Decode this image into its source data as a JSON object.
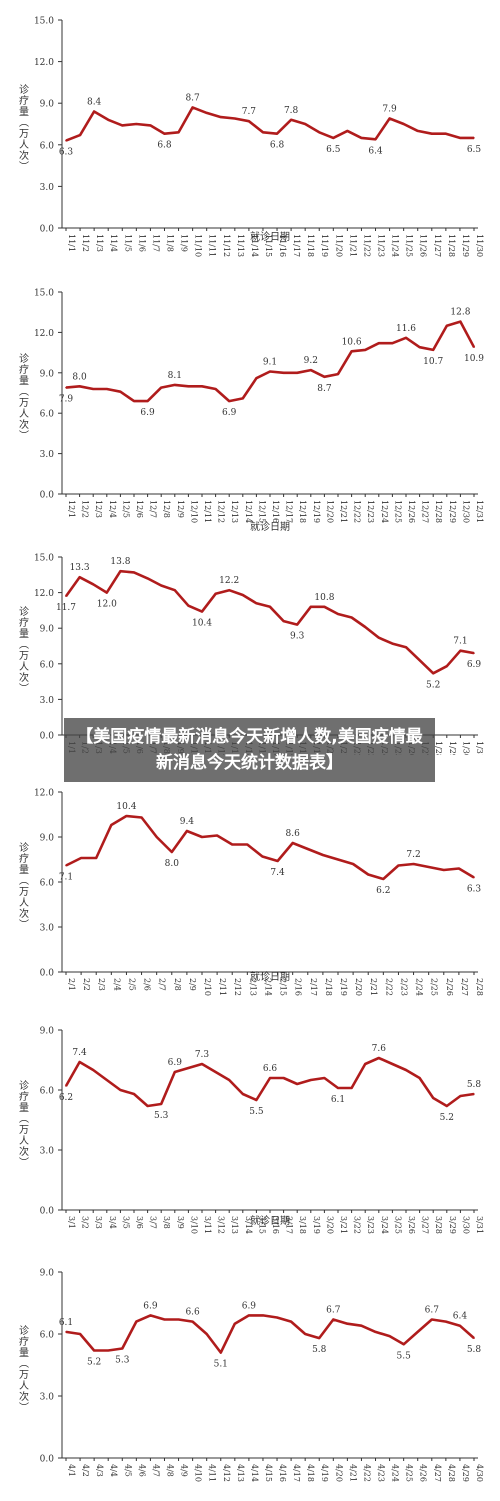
{
  "overlay_title": "【美国疫情最新消息今天新增人数,美国疫情最新消息今天统计数据表】",
  "colors": {
    "line": "#b01c1c",
    "axis": "#333333",
    "text": "#333333",
    "overlay_bg": "#464646"
  },
  "chart_data": [
    {
      "type": "line",
      "xlabel": "就诊日期",
      "ylabel": "诊疗量（万人次）",
      "ylim": [
        0,
        15
      ],
      "yticks": [
        "0.0",
        "3.0",
        "6.0",
        "9.0",
        "12.0",
        "15.0"
      ],
      "categories": [
        "11/1",
        "11/2",
        "11/3",
        "11/4",
        "11/5",
        "11/6",
        "11/7",
        "11/8",
        "11/9",
        "11/10",
        "11/11",
        "11/12",
        "11/13",
        "11/14",
        "11/15",
        "11/16",
        "11/17",
        "11/18",
        "11/19",
        "11/20",
        "11/21",
        "11/22",
        "11/23",
        "11/24",
        "11/25",
        "11/26",
        "11/27",
        "11/28",
        "11/29",
        "11/30"
      ],
      "values": [
        6.3,
        6.7,
        8.4,
        7.8,
        7.4,
        7.5,
        7.4,
        6.8,
        6.9,
        8.7,
        8.3,
        8.0,
        7.9,
        7.7,
        6.9,
        6.8,
        7.8,
        7.5,
        6.9,
        6.5,
        7.0,
        6.5,
        6.4,
        7.9,
        7.5,
        7.0,
        6.8,
        6.8,
        6.5,
        6.5
      ],
      "labels": [
        {
          "i": 0,
          "t": "6.3",
          "pos": "below"
        },
        {
          "i": 2,
          "t": "8.4",
          "pos": "above"
        },
        {
          "i": 7,
          "t": "6.8",
          "pos": "below"
        },
        {
          "i": 9,
          "t": "8.7",
          "pos": "above"
        },
        {
          "i": 13,
          "t": "7.7",
          "pos": "above"
        },
        {
          "i": 15,
          "t": "6.8",
          "pos": "below"
        },
        {
          "i": 16,
          "t": "7.8",
          "pos": "above"
        },
        {
          "i": 19,
          "t": "6.5",
          "pos": "below"
        },
        {
          "i": 22,
          "t": "6.4",
          "pos": "below"
        },
        {
          "i": 23,
          "t": "7.9",
          "pos": "above"
        },
        {
          "i": 29,
          "t": "6.5",
          "pos": "below"
        }
      ]
    },
    {
      "type": "line",
      "xlabel": "就诊日期",
      "ylabel": "诊疗量（万人次）",
      "ylim": [
        0,
        15
      ],
      "yticks": [
        "0.0",
        "3.0",
        "6.0",
        "9.0",
        "12.0",
        "15.0"
      ],
      "categories": [
        "12/1",
        "12/2",
        "12/3",
        "12/4",
        "12/5",
        "12/6",
        "12/7",
        "12/8",
        "12/9",
        "12/10",
        "12/11",
        "12/12",
        "12/13",
        "12/14",
        "12/15",
        "12/16",
        "12/17",
        "12/18",
        "12/19",
        "12/20",
        "12/21",
        "12/22",
        "12/23",
        "12/24",
        "12/25",
        "12/26",
        "12/27",
        "12/28",
        "12/29",
        "12/30",
        "12/31"
      ],
      "values": [
        7.9,
        8.0,
        7.8,
        7.8,
        7.6,
        6.9,
        6.9,
        7.9,
        8.1,
        8.0,
        8.0,
        7.8,
        6.9,
        7.1,
        8.6,
        9.1,
        9.0,
        9.0,
        9.2,
        8.7,
        8.9,
        10.6,
        10.7,
        11.2,
        11.2,
        11.6,
        10.9,
        10.7,
        12.5,
        12.8,
        10.9
      ],
      "labels": [
        {
          "i": 0,
          "t": "7.9",
          "pos": "below"
        },
        {
          "i": 1,
          "t": "8.0",
          "pos": "above"
        },
        {
          "i": 6,
          "t": "6.9",
          "pos": "below"
        },
        {
          "i": 8,
          "t": "8.1",
          "pos": "above"
        },
        {
          "i": 12,
          "t": "6.9",
          "pos": "below"
        },
        {
          "i": 15,
          "t": "9.1",
          "pos": "above"
        },
        {
          "i": 18,
          "t": "9.2",
          "pos": "above"
        },
        {
          "i": 19,
          "t": "8.7",
          "pos": "below"
        },
        {
          "i": 21,
          "t": "10.6",
          "pos": "above"
        },
        {
          "i": 25,
          "t": "11.6",
          "pos": "above"
        },
        {
          "i": 27,
          "t": "10.7",
          "pos": "below"
        },
        {
          "i": 29,
          "t": "12.8",
          "pos": "above"
        },
        {
          "i": 30,
          "t": "10.9",
          "pos": "below"
        }
      ]
    },
    {
      "type": "line",
      "xlabel": "",
      "ylabel": "诊疗量（万人次）",
      "ylim": [
        0,
        15
      ],
      "yticks": [
        "0.0",
        "3.0",
        "6.0",
        "9.0",
        "12.0",
        "15.0"
      ],
      "categories": [
        "1/1",
        "1/2",
        "1/3",
        "1/4",
        "1/5",
        "1/6",
        "1/7",
        "1/8",
        "1/9",
        "1/10",
        "1/11",
        "1/12",
        "1/13",
        "1/14",
        "1/15",
        "1/16",
        "1/17",
        "1/18",
        "1/19",
        "1/20",
        "1/21",
        "1/22",
        "1/23",
        "1/24",
        "1/25",
        "1/26",
        "1/27",
        "1/28",
        "1/29",
        "1/30",
        "1/31"
      ],
      "values": [
        11.7,
        13.3,
        12.7,
        12.0,
        13.8,
        13.7,
        13.2,
        12.6,
        12.2,
        10.9,
        10.4,
        11.9,
        12.2,
        11.8,
        11.1,
        10.8,
        9.6,
        9.3,
        10.8,
        10.8,
        10.2,
        9.9,
        9.1,
        8.2,
        7.7,
        7.4,
        6.3,
        5.2,
        5.8,
        7.1,
        6.9
      ],
      "labels": [
        {
          "i": 0,
          "t": "11.7",
          "pos": "below"
        },
        {
          "i": 1,
          "t": "13.3",
          "pos": "above"
        },
        {
          "i": 3,
          "t": "12.0",
          "pos": "below"
        },
        {
          "i": 4,
          "t": "13.8",
          "pos": "above"
        },
        {
          "i": 10,
          "t": "10.4",
          "pos": "below"
        },
        {
          "i": 12,
          "t": "12.2",
          "pos": "above"
        },
        {
          "i": 17,
          "t": "9.3",
          "pos": "below"
        },
        {
          "i": 19,
          "t": "10.8",
          "pos": "above"
        },
        {
          "i": 27,
          "t": "5.2",
          "pos": "below"
        },
        {
          "i": 29,
          "t": "7.1",
          "pos": "above"
        },
        {
          "i": 30,
          "t": "6.9",
          "pos": "below"
        }
      ]
    },
    {
      "type": "line",
      "xlabel": "就诊日期",
      "ylabel": "诊疗量（万人次）",
      "ylim": [
        0,
        12
      ],
      "yticks": [
        "0.0",
        "3.0",
        "6.0",
        "9.0",
        "12.0"
      ],
      "categories": [
        "2/1",
        "2/2",
        "2/3",
        "2/4",
        "2/5",
        "2/6",
        "2/7",
        "2/8",
        "2/9",
        "2/10",
        "2/11",
        "2/12",
        "2/13",
        "2/14",
        "2/15",
        "2/16",
        "2/17",
        "2/18",
        "2/19",
        "2/20",
        "2/21",
        "2/22",
        "2/23",
        "2/24",
        "2/25",
        "2/26",
        "2/27",
        "2/28"
      ],
      "values": [
        7.1,
        7.6,
        7.6,
        9.8,
        10.4,
        10.3,
        9.0,
        8.0,
        9.4,
        9.0,
        9.1,
        8.5,
        8.5,
        7.7,
        7.4,
        8.6,
        8.2,
        7.8,
        7.5,
        7.2,
        6.5,
        6.2,
        7.1,
        7.2,
        7.0,
        6.8,
        6.9,
        6.3
      ],
      "labels": [
        {
          "i": 0,
          "t": "7.1",
          "pos": "below"
        },
        {
          "i": 4,
          "t": "10.4",
          "pos": "above"
        },
        {
          "i": 7,
          "t": "8.0",
          "pos": "below"
        },
        {
          "i": 8,
          "t": "9.4",
          "pos": "above"
        },
        {
          "i": 14,
          "t": "7.4",
          "pos": "below"
        },
        {
          "i": 15,
          "t": "8.6",
          "pos": "above"
        },
        {
          "i": 21,
          "t": "6.2",
          "pos": "below"
        },
        {
          "i": 23,
          "t": "7.2",
          "pos": "above"
        },
        {
          "i": 27,
          "t": "6.3",
          "pos": "below"
        }
      ]
    },
    {
      "type": "line",
      "xlabel": "就诊日期",
      "ylabel": "诊疗量（万人次）",
      "ylim": [
        0,
        9
      ],
      "yticks": [
        "0.0",
        "3.0",
        "6.0",
        "9.0"
      ],
      "categories": [
        "3/1",
        "3/2",
        "3/3",
        "3/4",
        "3/5",
        "3/6",
        "3/7",
        "3/8",
        "3/9",
        "3/10",
        "3/11",
        "3/12",
        "3/13",
        "3/14",
        "3/15",
        "3/16",
        "3/17",
        "3/18",
        "3/19",
        "3/20",
        "3/21",
        "3/22",
        "3/23",
        "3/24",
        "3/25",
        "3/26",
        "3/27",
        "3/28",
        "3/29",
        "3/30",
        "3/31"
      ],
      "values": [
        6.2,
        7.4,
        7.0,
        6.5,
        6.0,
        5.8,
        5.2,
        5.3,
        6.9,
        7.1,
        7.3,
        6.9,
        6.5,
        5.8,
        5.5,
        6.6,
        6.6,
        6.3,
        6.5,
        6.6,
        6.1,
        6.1,
        7.3,
        7.6,
        7.3,
        7.0,
        6.6,
        5.6,
        5.2,
        5.7,
        5.8
      ],
      "labels": [
        {
          "i": 0,
          "t": "6.2",
          "pos": "below"
        },
        {
          "i": 1,
          "t": "7.4",
          "pos": "above"
        },
        {
          "i": 7,
          "t": "5.3",
          "pos": "below"
        },
        {
          "i": 8,
          "t": "6.9",
          "pos": "above"
        },
        {
          "i": 10,
          "t": "7.3",
          "pos": "above"
        },
        {
          "i": 14,
          "t": "5.5",
          "pos": "below"
        },
        {
          "i": 15,
          "t": "6.6",
          "pos": "above"
        },
        {
          "i": 20,
          "t": "6.1",
          "pos": "below"
        },
        {
          "i": 23,
          "t": "7.6",
          "pos": "above"
        },
        {
          "i": 28,
          "t": "5.2",
          "pos": "below"
        },
        {
          "i": 30,
          "t": "5.8",
          "pos": "above"
        }
      ]
    },
    {
      "type": "line",
      "xlabel": "",
      "ylabel": "诊疗量（万人次）",
      "ylim": [
        0,
        9
      ],
      "yticks": [
        "0.0",
        "3.0",
        "6.0",
        "9.0"
      ],
      "categories": [
        "4/1",
        "4/2",
        "4/3",
        "4/4",
        "4/5",
        "4/6",
        "4/7",
        "4/8",
        "4/9",
        "4/10",
        "4/11",
        "4/12",
        "4/13",
        "4/14",
        "4/15",
        "4/16",
        "4/17",
        "4/18",
        "4/19",
        "4/20",
        "4/21",
        "4/22",
        "4/23",
        "4/24",
        "4/25",
        "4/26",
        "4/27",
        "4/28",
        "4/29",
        "4/30"
      ],
      "values": [
        6.1,
        6.0,
        5.2,
        5.2,
        5.3,
        6.6,
        6.9,
        6.7,
        6.7,
        6.6,
        6.0,
        5.1,
        6.5,
        6.9,
        6.9,
        6.8,
        6.6,
        6.0,
        5.8,
        6.7,
        6.5,
        6.4,
        6.1,
        5.9,
        5.5,
        6.1,
        6.7,
        6.6,
        6.4,
        5.8
      ],
      "labels": [
        {
          "i": 0,
          "t": "6.1",
          "pos": "above"
        },
        {
          "i": 2,
          "t": "5.2",
          "pos": "below"
        },
        {
          "i": 4,
          "t": "5.3",
          "pos": "below"
        },
        {
          "i": 6,
          "t": "6.9",
          "pos": "above"
        },
        {
          "i": 9,
          "t": "6.6",
          "pos": "above"
        },
        {
          "i": 11,
          "t": "5.1",
          "pos": "below"
        },
        {
          "i": 13,
          "t": "6.9",
          "pos": "above"
        },
        {
          "i": 18,
          "t": "5.8",
          "pos": "below"
        },
        {
          "i": 19,
          "t": "6.7",
          "pos": "above"
        },
        {
          "i": 24,
          "t": "5.5",
          "pos": "below"
        },
        {
          "i": 26,
          "t": "6.7",
          "pos": "above"
        },
        {
          "i": 28,
          "t": "6.4",
          "pos": "above"
        },
        {
          "i": 29,
          "t": "5.8",
          "pos": "below"
        }
      ]
    }
  ]
}
